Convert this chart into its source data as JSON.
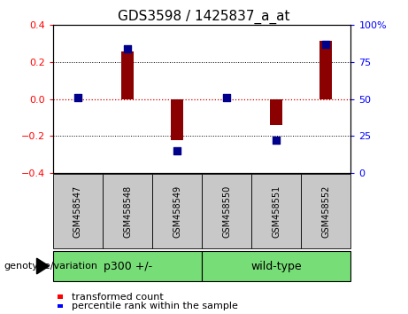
{
  "title": "GDS3598 / 1425837_a_at",
  "samples": [
    "GSM458547",
    "GSM458548",
    "GSM458549",
    "GSM458550",
    "GSM458551",
    "GSM458552"
  ],
  "transformed_counts": [
    0.0,
    0.255,
    -0.225,
    0.0,
    -0.14,
    0.315
  ],
  "percentile_ranks": [
    51,
    84,
    15,
    51,
    22,
    87
  ],
  "ylim_left": [
    -0.4,
    0.4
  ],
  "ylim_right": [
    0,
    100
  ],
  "yticks_left": [
    -0.4,
    -0.2,
    0.0,
    0.2,
    0.4
  ],
  "yticks_right": [
    0,
    25,
    50,
    75,
    100
  ],
  "bar_color": "#8b0000",
  "dot_color": "#00008b",
  "bar_width": 0.25,
  "dot_size": 28,
  "zero_line_color": "#cc0000",
  "bg_color": "#ffffff",
  "sample_bg_color": "#c8c8c8",
  "group1_color": "#77dd77",
  "group2_color": "#77dd77",
  "legend_red_label": "transformed count",
  "legend_blue_label": "percentile rank within the sample",
  "genotype_label": "genotype/variation",
  "title_fontsize": 11,
  "tick_fontsize": 8,
  "sample_fontsize": 7,
  "group_fontsize": 9,
  "legend_fontsize": 8
}
